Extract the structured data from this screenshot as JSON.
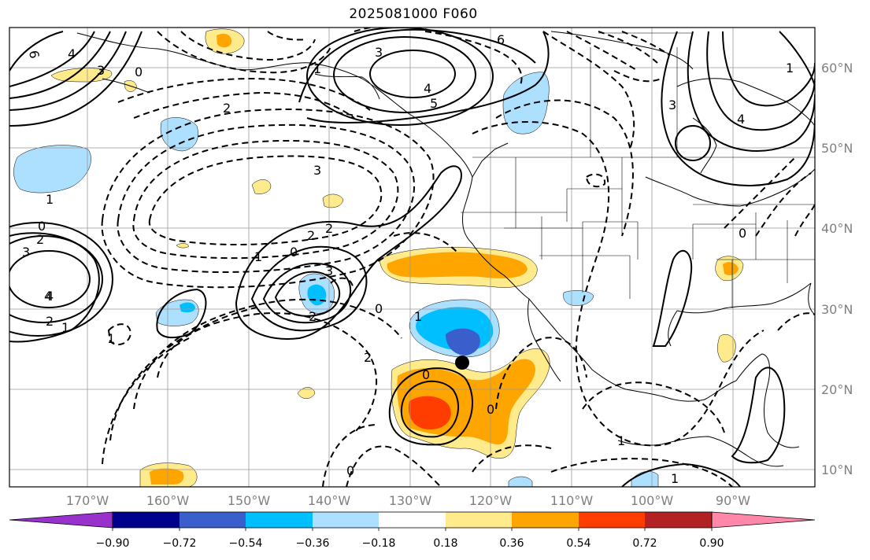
{
  "title": "2025081000 F060",
  "lat_labels": [
    "60°N",
    "50°N",
    "40°N",
    "30°N",
    "20°N",
    "10°N"
  ],
  "lon_labels": [
    "170°W",
    "160°W",
    "150°W",
    "140°W",
    "130°W",
    "120°W",
    "110°W",
    "100°W",
    "90°W"
  ],
  "colorbar": {
    "ticks": [
      "−0.90",
      "−0.72",
      "−0.54",
      "−0.36",
      "−0.18",
      "0.18",
      "0.36",
      "0.54",
      "0.72",
      "0.90"
    ],
    "colors": [
      "#9932CC",
      "#00008B",
      "#3A5FCD",
      "#00BFFF",
      "#ADDFFF",
      "#FFFFFF",
      "#FFEB8C",
      "#FFA500",
      "#FF3D00",
      "#B22222",
      "#FF88AA"
    ]
  },
  "contour_labels": [
    "6",
    "4",
    "3",
    "0",
    "3",
    "4",
    "2",
    "2",
    "1",
    "3",
    "0",
    "2",
    "1",
    "3",
    "0",
    "2",
    "4",
    "5",
    "6",
    "4",
    "1",
    "2",
    "2",
    "0",
    "1",
    "4",
    "3",
    "2",
    "1",
    "0",
    "3",
    "1",
    "0",
    "0",
    "1",
    "1",
    "1",
    "0"
  ],
  "marker": "black-dot"
}
